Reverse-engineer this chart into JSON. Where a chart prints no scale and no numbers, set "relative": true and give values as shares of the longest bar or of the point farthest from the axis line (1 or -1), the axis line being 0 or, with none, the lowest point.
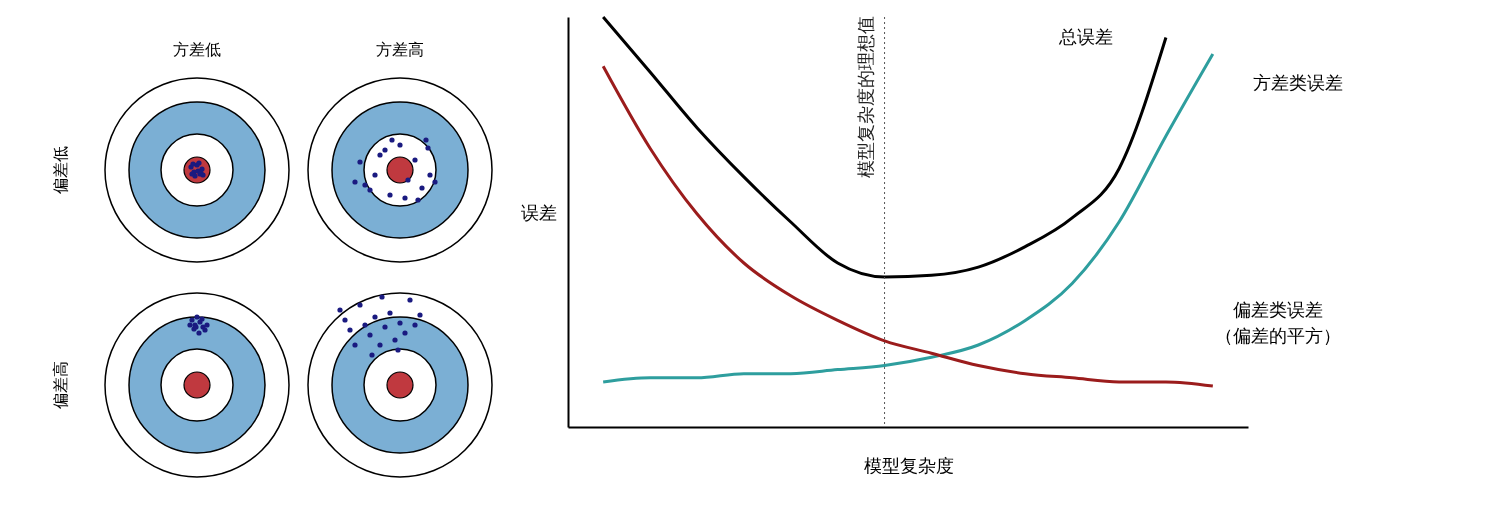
{
  "chart_data": [
    {
      "type": "other",
      "categories": [
        "方差低",
        "方差高"
      ],
      "y_categories": [
        "偏差低",
        "偏差高"
      ]
    },
    {
      "type": "line",
      "relative": true,
      "xlabel": "模型复杂度",
      "ylabel": "误差",
      "grid": false,
      "legend": false,
      "categories": [
        null,
        null,
        null,
        null,
        null,
        null,
        null,
        null,
        null,
        null,
        null,
        null,
        null,
        null
      ],
      "series": [
        {
          "name": "总误差",
          "color": "#000000",
          "values": [
            1.0,
            0.866,
            0.73,
            0.61,
            0.5,
            0.4,
            0.366,
            0.37,
            0.39,
            0.44,
            0.51,
            0.63,
            0.95,
            null
          ]
        },
        {
          "name": "方差类误差",
          "color": "#2e9e9e",
          "values": [
            0.11,
            0.12,
            0.12,
            0.13,
            0.13,
            0.14,
            0.15,
            0.17,
            0.2,
            0.26,
            0.35,
            0.5,
            0.71,
            0.91
          ]
        },
        {
          "name": "偏差类误差（偏差的平方）",
          "color": "#9b1c1c",
          "values": [
            0.88,
            0.68,
            0.52,
            0.4,
            0.32,
            0.26,
            0.21,
            0.18,
            0.15,
            0.13,
            0.12,
            0.11,
            0.11,
            0.1
          ]
        }
      ],
      "annotations": [
        "模型复杂度的理想值"
      ]
    }
  ]
}
